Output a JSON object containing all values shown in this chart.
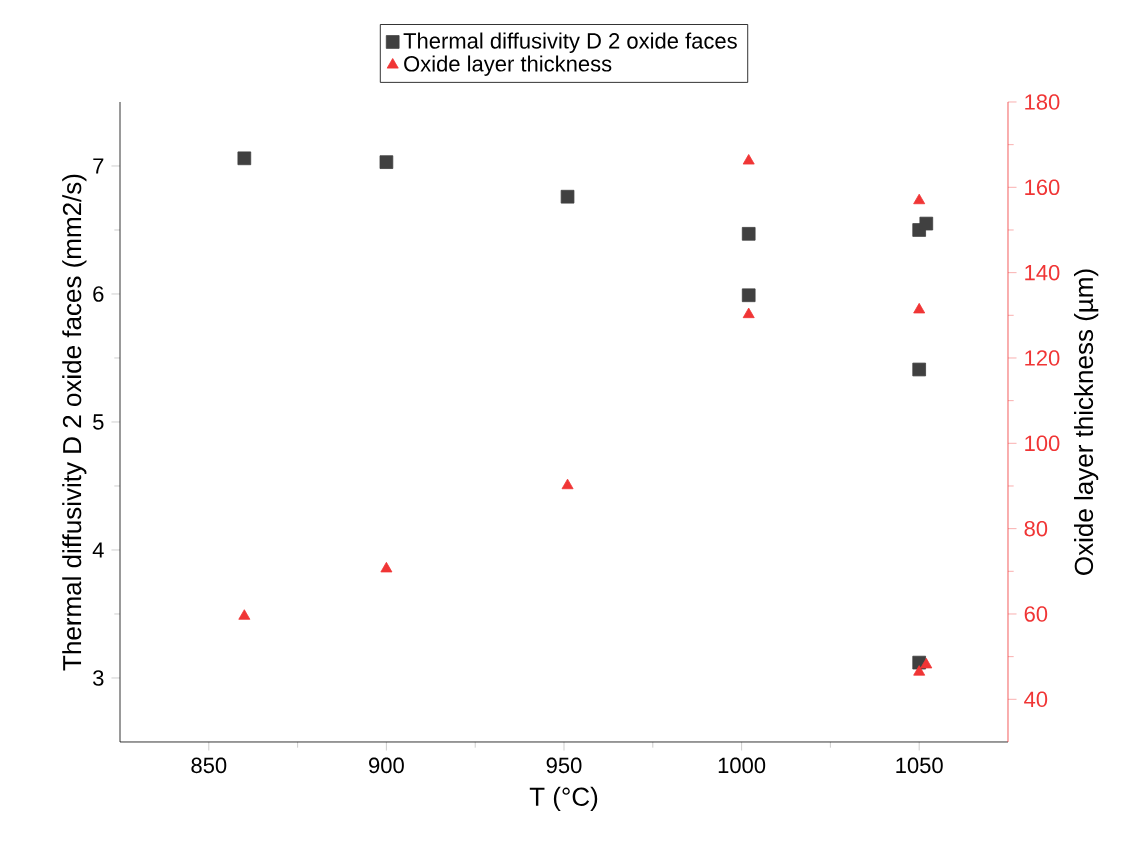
{
  "chart_data": {
    "type": "scatter",
    "xlabel": "T (°C)",
    "ylabel": "Thermal diffusivity D 2 oxide faces (mm2/s)",
    "y2label": "Oxide layer thickness (µm)",
    "xlim": [
      825,
      1075
    ],
    "xticks": [
      850,
      900,
      950,
      1000,
      1050
    ],
    "ylim": [
      2.5,
      7.5
    ],
    "yticks": [
      3,
      4,
      5,
      6,
      7
    ],
    "y2lim": [
      30,
      180
    ],
    "y2ticks": [
      40,
      60,
      80,
      100,
      120,
      140,
      160,
      180
    ],
    "legend": "top",
    "grid": false,
    "series": [
      {
        "name": "Thermal diffusivity D 2 oxide faces",
        "color": "#404040",
        "marker": "square",
        "x": [
          860,
          900,
          951,
          1002,
          1002,
          1050,
          1052,
          1050,
          1050
        ],
        "values": [
          7.06,
          7.03,
          6.76,
          6.47,
          5.99,
          6.5,
          6.55,
          5.41,
          3.12
        ]
      },
      {
        "name": "Oxide layer thickness",
        "color": "#f03535",
        "marker": "triangle",
        "axis": "y2",
        "x": [
          860,
          900,
          951,
          1002,
          1002,
          1050,
          1050,
          1050,
          1052
        ],
        "values": [
          59.5,
          70.6,
          90.1,
          166.2,
          130.2,
          156.9,
          131.3,
          46.4,
          48.1
        ]
      }
    ]
  }
}
